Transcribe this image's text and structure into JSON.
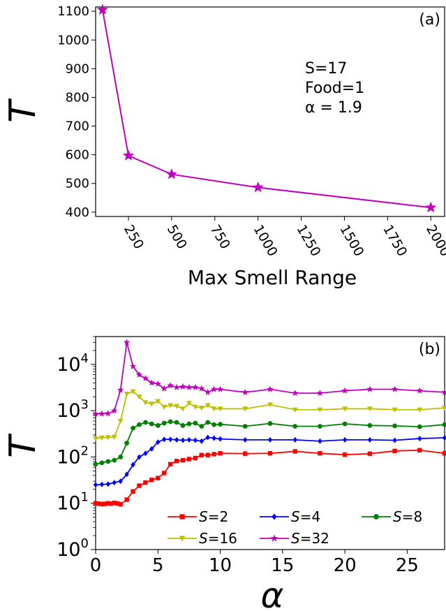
{
  "chart_data": [
    {
      "panel_label": "(a)",
      "type": "line",
      "xlabel": "Max Smell Range",
      "ylabel": "T",
      "xlim": [
        60,
        2080
      ],
      "ylim": [
        385,
        1115
      ],
      "xticks": [
        250,
        500,
        750,
        1000,
        1250,
        1500,
        1750,
        2000
      ],
      "yticks": [
        400,
        500,
        600,
        700,
        800,
        900,
        1000,
        1100
      ],
      "annotation": [
        "S=17",
        "Food=1",
        "α = 1.9"
      ],
      "series": [
        {
          "color": "#bf00bf",
          "marker": "star",
          "x": [
            100,
            250,
            500,
            1000,
            2000
          ],
          "y": [
            1105,
            597,
            532,
            486,
            416
          ]
        }
      ]
    },
    {
      "panel_label": "(b)",
      "type": "line",
      "xlabel": "α",
      "ylabel": "T",
      "yscale": "log",
      "xlim": [
        0,
        28
      ],
      "ylim": [
        1,
        40000
      ],
      "xticks": [
        0,
        5,
        10,
        15,
        20,
        25
      ],
      "yticks": [
        "10^0",
        "10^1",
        "10^2",
        "10^3",
        "10^4"
      ],
      "legend_position": "lower-center",
      "series": [
        {
          "name": "S=2",
          "color": "#ff0000",
          "marker": "square",
          "x": [
            0,
            0.25,
            0.5,
            0.75,
            1,
            1.25,
            1.5,
            1.75,
            2,
            2.5,
            3,
            3.5,
            4,
            4.5,
            5,
            5.5,
            6,
            6.5,
            7,
            7.5,
            8,
            8.5,
            9,
            9.5,
            10,
            12,
            14,
            16,
            18,
            20,
            22,
            24,
            26,
            28
          ],
          "y": [
            10,
            9.8,
            9.6,
            9.7,
            10,
            9.8,
            10.2,
            9.9,
            9.5,
            12,
            18,
            24,
            28,
            32,
            35,
            45,
            70,
            82,
            85,
            90,
            95,
            110,
            110,
            115,
            120,
            118,
            120,
            132,
            120,
            112,
            118,
            135,
            140,
            120
          ]
        },
        {
          "name": "S=4",
          "color": "#0000ff",
          "marker": "diamond",
          "x": [
            0,
            0.5,
            1,
            1.5,
            2,
            2.5,
            3,
            3.5,
            4,
            4.5,
            5,
            5.5,
            6,
            6.5,
            7,
            7.5,
            8,
            8.5,
            9,
            9.5,
            10,
            12,
            14,
            16,
            18,
            20,
            22,
            24,
            26,
            28
          ],
          "y": [
            25,
            25.5,
            26,
            28,
            30,
            42,
            68,
            100,
            120,
            150,
            210,
            240,
            240,
            235,
            230,
            235,
            230,
            220,
            265,
            255,
            245,
            235,
            235,
            235,
            220,
            235,
            235,
            230,
            250,
            260
          ]
        },
        {
          "name": "S=8",
          "color": "#008000",
          "marker": "circle",
          "x": [
            0,
            0.5,
            1,
            1.5,
            2,
            2.5,
            3,
            3.5,
            4,
            4.5,
            5,
            5.5,
            6,
            6.5,
            7,
            7.5,
            8,
            8.5,
            9,
            9.5,
            10,
            12,
            14,
            16,
            18,
            20,
            22,
            24,
            26,
            28
          ],
          "y": [
            70,
            75,
            80,
            85,
            100,
            200,
            420,
            500,
            560,
            520,
            480,
            540,
            580,
            560,
            480,
            520,
            540,
            460,
            560,
            500,
            510,
            460,
            530,
            460,
            460,
            520,
            480,
            470,
            450,
            500
          ]
        },
        {
          "name": "S=16",
          "color": "#bfbf00",
          "marker": "triangle-down",
          "x": [
            0,
            0.5,
            1,
            1.5,
            2,
            2.5,
            3,
            3.5,
            4,
            4.5,
            5,
            5.5,
            6,
            6.5,
            7,
            7.5,
            8,
            8.5,
            9,
            9.5,
            10,
            12,
            14,
            16,
            18,
            20,
            22,
            24,
            26,
            28
          ],
          "y": [
            250,
            260,
            265,
            270,
            600,
            2300,
            2600,
            2000,
            1500,
            1400,
            1600,
            1200,
            1300,
            1250,
            1100,
            1450,
            1200,
            1150,
            1300,
            1100,
            1100,
            1100,
            1350,
            1050,
            1050,
            1100,
            1100,
            1050,
            1050,
            1150
          ]
        },
        {
          "name": "S=32",
          "color": "#bf00bf",
          "marker": "star",
          "x": [
            0,
            0.5,
            1,
            1.5,
            2,
            2.5,
            3,
            3.5,
            4,
            4.5,
            5,
            5.5,
            6,
            6.5,
            7,
            7.5,
            8,
            8.5,
            9,
            9.5,
            10,
            12,
            14,
            16,
            18,
            20,
            22,
            24,
            26,
            28
          ],
          "y": [
            850,
            860,
            870,
            1000,
            2800,
            30000,
            9000,
            6000,
            5000,
            4000,
            3800,
            3000,
            3500,
            3200,
            3300,
            3200,
            3200,
            3000,
            2500,
            2900,
            2900,
            2500,
            2900,
            2400,
            2400,
            2700,
            2900,
            2900,
            2700,
            2500
          ]
        }
      ]
    }
  ]
}
